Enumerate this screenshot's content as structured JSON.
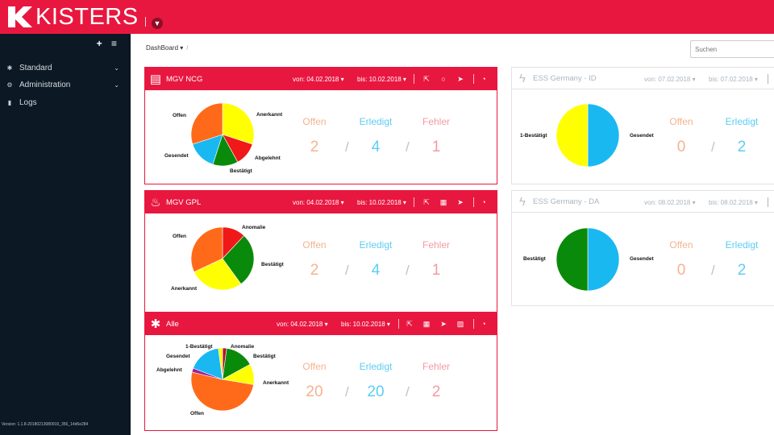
{
  "app": {
    "logo_text": "KISTERS",
    "version": "Version: 1.1.8-20180213080919_356_14d6e284"
  },
  "sidebar": {
    "tools": "+ ≡",
    "items": [
      {
        "label": "Standard",
        "icon": "asterisk-icon",
        "has_caret": true
      },
      {
        "label": "Administration",
        "icon": "cogs-icon",
        "has_caret": true
      },
      {
        "label": "Logs",
        "icon": "bookmark-icon",
        "has_caret": false
      }
    ]
  },
  "breadcrumb": {
    "label": "DashBoard ▾",
    "sep": "/"
  },
  "search": {
    "placeholder": "Suchen"
  },
  "stats_labels": {
    "offen": "Offen",
    "erledigt": "Erledigt",
    "fehler": "Fehler"
  },
  "colors": {
    "red": "#e8173f",
    "pie_orange": "#ff6a1a",
    "pie_yellow": "#ffff00",
    "pie_red": "#f01818",
    "pie_green": "#0a8a0a",
    "pie_blue": "#1ab8f0",
    "pie_darkred": "#b01030",
    "pie_purple": "#a020a0"
  },
  "panels": [
    {
      "id": "mgv-ncg",
      "title": "MGV NCG",
      "icon": "inbox-icon",
      "from": "von: 04.02.2018 ▾",
      "to": "bis: 10.02.2018 ▾",
      "tools": [
        "export-icon",
        "circle-icon",
        "send-icon"
      ],
      "offen": "2",
      "erledigt": "4",
      "fehler": "1",
      "pie": {
        "labels": [
          "Anerkannt",
          "Abgelehnt",
          "Bestätigt",
          "Gesendet",
          "Offen"
        ],
        "values": [
          30,
          12,
          13,
          15,
          30
        ]
      }
    },
    {
      "id": "mgv-gpl",
      "title": "MGV GPL",
      "icon": "fire-icon",
      "from": "von: 04.02.2018 ▾",
      "to": "bis: 10.02.2018 ▾",
      "tools": [
        "export-icon",
        "calculator-icon",
        "send-icon"
      ],
      "offen": "2",
      "erledigt": "4",
      "fehler": "1",
      "pie": {
        "labels": [
          "Anomalie",
          "Bestätigt",
          "Anerkannt",
          "Offen"
        ],
        "values": [
          12,
          28,
          28,
          32
        ]
      }
    },
    {
      "id": "alle",
      "title": "Alle",
      "icon": "asterisk-icon",
      "from": "von: 04.02.2018 ▾",
      "to": "bis: 10.02.2018 ▾",
      "tools": [
        "export-icon",
        "calculator-icon",
        "send-icon",
        "image-icon"
      ],
      "offen": "20",
      "erledigt": "20",
      "fehler": "2",
      "pie": {
        "labels": [
          "Anomalie",
          "Bestätigt",
          "Anerkannt",
          "Offen",
          "Abgelehnt",
          "Gesendet",
          "1-Bestätigt"
        ],
        "values": [
          2,
          14,
          10,
          48,
          2,
          16,
          2
        ]
      }
    },
    {
      "id": "ess-id",
      "title": "ESS Germany - ID",
      "icon": "bolt-icon",
      "from": "von: 07.02.2018 ▾",
      "to": "bis: 07.02.2018 ▾",
      "offen": "0",
      "erledigt": "2",
      "pie": {
        "labels": [
          "Gesendet",
          "1-Bestätigt"
        ],
        "values": [
          50,
          50
        ]
      }
    },
    {
      "id": "ess-da",
      "title": "ESS Germany - DA",
      "icon": "bolt-icon",
      "from": "von: 08.02.2018 ▾",
      "to": "bis: 08.02.2018 ▾",
      "offen": "0",
      "erledigt": "2",
      "pie": {
        "labels": [
          "Gesendet",
          "Bestätigt"
        ],
        "values": [
          50,
          50
        ]
      }
    }
  ]
}
